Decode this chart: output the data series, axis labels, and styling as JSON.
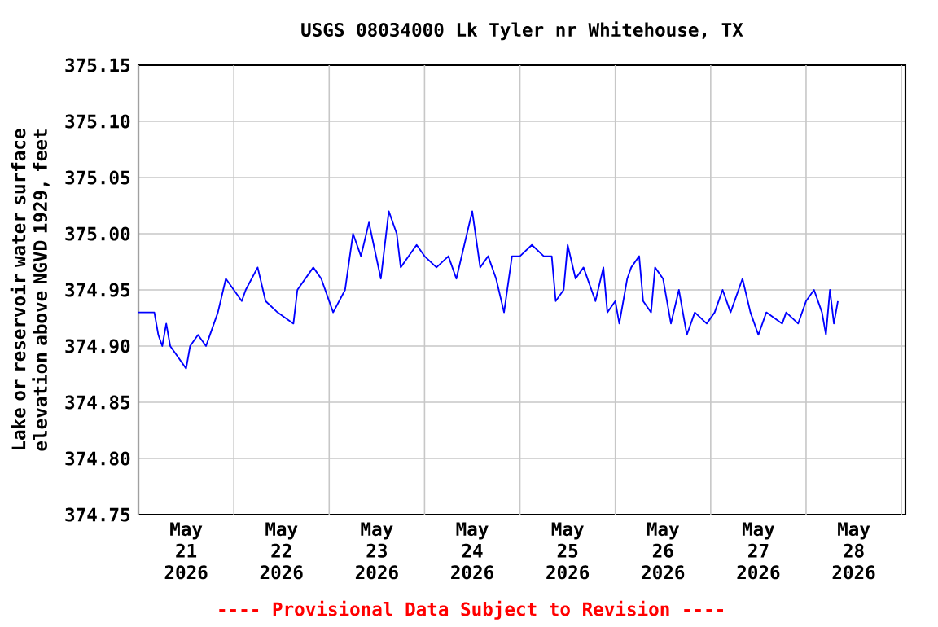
{
  "chart_data": {
    "type": "line",
    "title": "USGS 08034000 Lk Tyler nr Whitehouse, TX",
    "ylabel": "Lake or reservoir water surface elevation above NGVD 1929, feet",
    "annotations": [
      "---- Provisional Data Subject to Revision ----"
    ],
    "xlim": [
      "2026-05-21T00:00",
      "2026-05-29T01:00"
    ],
    "xticks": [
      {
        "value": "2026-05-21T00:00",
        "label": null
      },
      {
        "value": "2026-05-21T12:00",
        "label": "May 21 2026"
      },
      {
        "value": "2026-05-22T00:00",
        "label": null
      },
      {
        "value": "2026-05-22T12:00",
        "label": "May 22 2026"
      },
      {
        "value": "2026-05-23T00:00",
        "label": null
      },
      {
        "value": "2026-05-23T12:00",
        "label": "May 23 2026"
      },
      {
        "value": "2026-05-24T00:00",
        "label": null
      },
      {
        "value": "2026-05-24T12:00",
        "label": "May 24 2026"
      },
      {
        "value": "2026-05-25T00:00",
        "label": null
      },
      {
        "value": "2026-05-25T12:00",
        "label": "May 25 2026"
      },
      {
        "value": "2026-05-26T00:00",
        "label": null
      },
      {
        "value": "2026-05-26T12:00",
        "label": "May 26 2026"
      },
      {
        "value": "2026-05-27T00:00",
        "label": null
      },
      {
        "value": "2026-05-27T12:00",
        "label": "May 27 2026"
      },
      {
        "value": "2026-05-28T00:00",
        "label": null
      },
      {
        "value": "2026-05-28T12:00",
        "label": "May 28 2026"
      },
      {
        "value": "2026-05-29T00:00",
        "label": null
      }
    ],
    "ylim": [
      374.75,
      375.15
    ],
    "yticks": [
      {
        "value": 374.75,
        "label": "374.75"
      },
      {
        "value": 374.8,
        "label": "374.80"
      },
      {
        "value": 374.85,
        "label": "374.85"
      },
      {
        "value": 374.9,
        "label": "374.90"
      },
      {
        "value": 374.95,
        "label": "374.95"
      },
      {
        "value": 375.0,
        "label": "375.00"
      },
      {
        "value": 375.05,
        "label": "375.05"
      },
      {
        "value": 375.1,
        "label": "375.10"
      },
      {
        "value": 375.15,
        "label": "375.15"
      }
    ],
    "grid": true,
    "marker": "none",
    "line_style": "solid",
    "series": [
      {
        "color": "#0000ff",
        "x": [
          "2026-05-21T00:00",
          "2026-05-21T02:00",
          "2026-05-21T04:00",
          "2026-05-21T05:00",
          "2026-05-21T06:00",
          "2026-05-21T07:00",
          "2026-05-21T08:00",
          "2026-05-21T10:00",
          "2026-05-21T12:00",
          "2026-05-21T13:00",
          "2026-05-21T15:00",
          "2026-05-21T17:00",
          "2026-05-21T19:00",
          "2026-05-21T20:00",
          "2026-05-21T22:00",
          "2026-05-22T00:00",
          "2026-05-22T02:00",
          "2026-05-22T03:00",
          "2026-05-22T06:00",
          "2026-05-22T08:00",
          "2026-05-22T11:00",
          "2026-05-22T15:00",
          "2026-05-22T16:00",
          "2026-05-22T20:00",
          "2026-05-22T22:00",
          "2026-05-23T01:00",
          "2026-05-23T04:00",
          "2026-05-23T06:00",
          "2026-05-23T08:00",
          "2026-05-23T10:00",
          "2026-05-23T13:00",
          "2026-05-23T15:00",
          "2026-05-23T17:00",
          "2026-05-23T18:00",
          "2026-05-23T20:00",
          "2026-05-23T22:00",
          "2026-05-24T00:00",
          "2026-05-24T03:00",
          "2026-05-24T06:00",
          "2026-05-24T08:00",
          "2026-05-24T10:00",
          "2026-05-24T12:00",
          "2026-05-24T14:00",
          "2026-05-24T16:00",
          "2026-05-24T18:00",
          "2026-05-24T20:00",
          "2026-05-24T22:00",
          "2026-05-25T00:00",
          "2026-05-25T03:00",
          "2026-05-25T06:00",
          "2026-05-25T08:00",
          "2026-05-25T09:00",
          "2026-05-25T11:00",
          "2026-05-25T12:00",
          "2026-05-25T14:00",
          "2026-05-25T16:00",
          "2026-05-25T18:00",
          "2026-05-25T19:00",
          "2026-05-25T21:00",
          "2026-05-25T22:00",
          "2026-05-26T00:00",
          "2026-05-26T01:00",
          "2026-05-26T03:00",
          "2026-05-26T04:00",
          "2026-05-26T06:00",
          "2026-05-26T07:00",
          "2026-05-26T09:00",
          "2026-05-26T10:00",
          "2026-05-26T12:00",
          "2026-05-26T14:00",
          "2026-05-26T16:00",
          "2026-05-26T18:00",
          "2026-05-26T20:00",
          "2026-05-26T23:00",
          "2026-05-27T01:00",
          "2026-05-27T03:00",
          "2026-05-27T05:00",
          "2026-05-27T08:00",
          "2026-05-27T10:00",
          "2026-05-27T12:00",
          "2026-05-27T14:00",
          "2026-05-27T18:00",
          "2026-05-27T19:00",
          "2026-05-27T22:00",
          "2026-05-28T00:00",
          "2026-05-28T02:00",
          "2026-05-28T04:00",
          "2026-05-28T05:00",
          "2026-05-28T06:00",
          "2026-05-28T07:00",
          "2026-05-28T08:00"
        ],
        "values": [
          374.93,
          374.93,
          374.93,
          374.91,
          374.9,
          374.92,
          374.9,
          374.89,
          374.88,
          374.9,
          374.91,
          374.9,
          374.92,
          374.93,
          374.96,
          374.95,
          374.94,
          374.95,
          374.97,
          374.94,
          374.93,
          374.92,
          374.95,
          374.97,
          374.96,
          374.93,
          374.95,
          375.0,
          374.98,
          375.01,
          374.96,
          375.02,
          375.0,
          374.97,
          374.98,
          374.99,
          374.98,
          374.97,
          374.98,
          374.96,
          374.99,
          375.02,
          374.97,
          374.98,
          374.96,
          374.93,
          374.98,
          374.98,
          374.99,
          374.98,
          374.98,
          374.94,
          374.95,
          374.99,
          374.96,
          374.97,
          374.95,
          374.94,
          374.97,
          374.93,
          374.94,
          374.92,
          374.96,
          374.97,
          374.98,
          374.94,
          374.93,
          374.97,
          374.96,
          374.92,
          374.95,
          374.91,
          374.93,
          374.92,
          374.93,
          374.95,
          374.93,
          374.96,
          374.93,
          374.91,
          374.93,
          374.92,
          374.93,
          374.92,
          374.94,
          374.95,
          374.93,
          374.91,
          374.95,
          374.92,
          374.94
        ]
      }
    ]
  }
}
